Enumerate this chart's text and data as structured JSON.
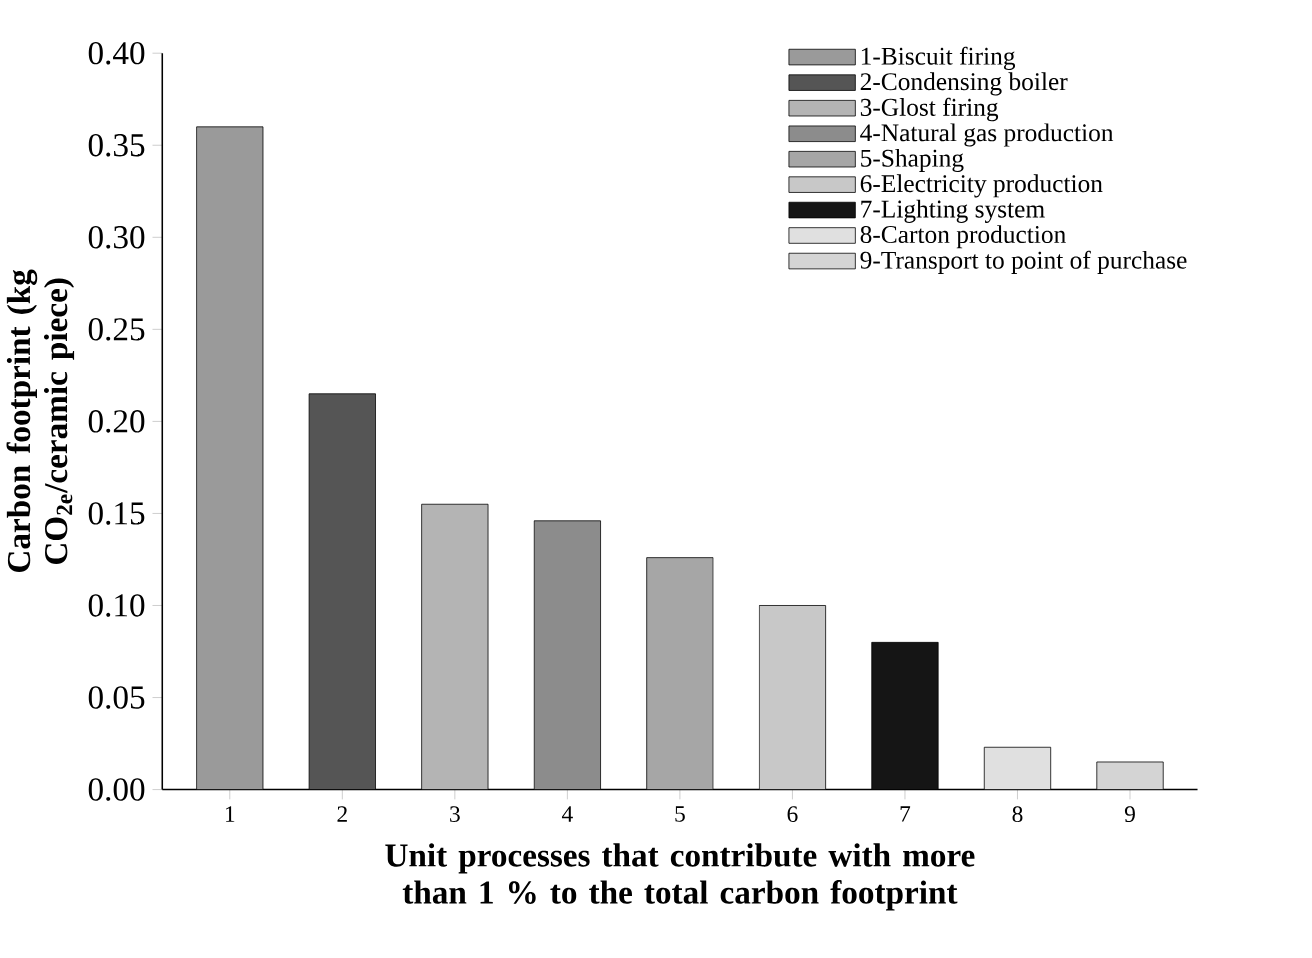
{
  "chart_data": {
    "type": "bar",
    "xlabel": "Unit processes that contribute with more than 1 % to the total carbon footprint",
    "ylabel": "Carbon footprint (kg CO$_{2e}$/ceramic piece)",
    "categories": [
      "1",
      "2",
      "3",
      "4",
      "5",
      "6",
      "7",
      "8",
      "9"
    ],
    "series": [
      {
        "name": "1-Biscuit firing",
        "color": "#9a9a9a",
        "values": [
          0.36,
          null,
          null,
          null,
          null,
          null,
          null,
          null,
          null
        ]
      },
      {
        "name": "2-Condensing boiler",
        "color": "#555555",
        "values": [
          null,
          0.215,
          null,
          null,
          null,
          null,
          null,
          null,
          null
        ]
      },
      {
        "name": "3-Glost firing",
        "color": "#b4b4b4",
        "values": [
          null,
          null,
          0.155,
          null,
          null,
          null,
          null,
          null,
          null
        ]
      },
      {
        "name": "4-Natural gas production",
        "color": "#8c8c8c",
        "values": [
          null,
          null,
          null,
          0.146,
          null,
          null,
          null,
          null,
          null
        ]
      },
      {
        "name": "5-Shaping",
        "color": "#a6a6a6",
        "values": [
          null,
          null,
          null,
          null,
          0.126,
          null,
          null,
          null,
          null
        ]
      },
      {
        "name": "6-Electricity production",
        "color": "#c8c8c8",
        "values": [
          null,
          null,
          null,
          null,
          null,
          0.1,
          null,
          null,
          null
        ]
      },
      {
        "name": "7-Lighting system",
        "color": "#151515",
        "values": [
          null,
          null,
          null,
          null,
          null,
          null,
          0.08,
          null,
          null
        ]
      },
      {
        "name": "8-Carton production",
        "color": "#e0e0e0",
        "values": [
          null,
          null,
          null,
          null,
          null,
          null,
          null,
          0.023,
          null
        ]
      },
      {
        "name": "9-Transport to point of purchase",
        "color": "#d4d4d4",
        "values": [
          null,
          null,
          null,
          null,
          null,
          null,
          null,
          null,
          0.015
        ]
      }
    ],
    "ylim": [
      0,
      0.4
    ],
    "yticks": [
      {
        "value": 0,
        "label": "0.00"
      },
      {
        "value": 0.05,
        "label": "0.05"
      },
      {
        "value": 0.1,
        "label": "0.10"
      },
      {
        "value": 0.15,
        "label": "0.15"
      },
      {
        "value": 0.2,
        "label": "0.20"
      },
      {
        "value": 0.25,
        "label": "0.25"
      },
      {
        "value": 0.3,
        "label": "0.30"
      },
      {
        "value": 0.35,
        "label": "0.35"
      },
      {
        "value": 0.4,
        "label": "0.40"
      }
    ],
    "legend": "top right",
    "grid": false
  }
}
